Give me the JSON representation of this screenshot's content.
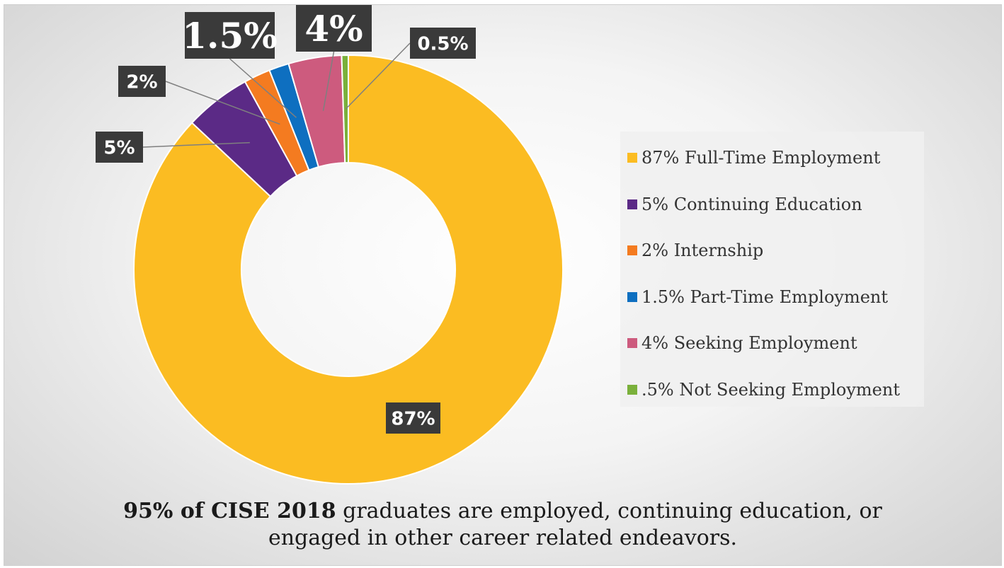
{
  "chart_data": {
    "type": "pie",
    "variant": "donut",
    "categories": [
      "Full-Time Employment",
      "Continuing Education",
      "Internship",
      "Part-Time Employment",
      "Seeking Employment",
      "Not Seeking Employment"
    ],
    "values": [
      87,
      5,
      2,
      1.5,
      4,
      0.5
    ],
    "colors": [
      "#fbbc22",
      "#5b2a86",
      "#f47b20",
      "#0e6fc0",
      "#cd5b7e",
      "#7ab03b"
    ],
    "data_labels": [
      "87%",
      "5%",
      "2%",
      "1.5%",
      "4%",
      "0.5%"
    ],
    "legend_entries": [
      "87% Full-Time Employment",
      "5% Continuing Education",
      "2% Internship",
      "1.5% Part-Time Employment",
      "4% Seeking Employment",
      ".5% Not Seeking Employment"
    ],
    "legend_position": "right",
    "title": ""
  },
  "caption": {
    "bold_part": "95%  of CISE 2018",
    "line1_rest": " graduates are employed, continuing education, or",
    "line2": "engaged in other career related endeavors."
  }
}
